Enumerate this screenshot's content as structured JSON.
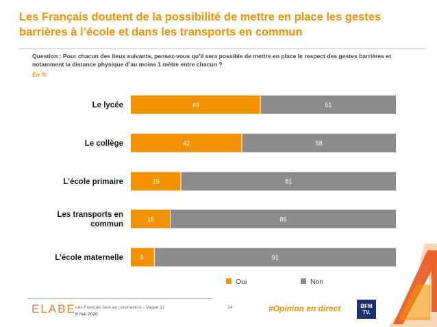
{
  "title": "Les Français doutent de la possibilité de mettre en place les gestes barrières à l’école et dans les transports en commun",
  "question": "Question : Pour chacun des lieux suivants, pensez-vous qu’il sera possible de mettre en place le respect des gestes barrières et notamment la distance physique d’au moins 1 mètre entre chacun ?",
  "unit": "En %",
  "colors": {
    "oui": "#f39200",
    "non": "#8c8c8c",
    "accent": "#f39200"
  },
  "legend": {
    "oui": "Oui",
    "non": "Non"
  },
  "chart_data": {
    "type": "bar",
    "orientation": "horizontal",
    "stacked": true,
    "categories": [
      "Le lycée",
      "Le collège",
      "L’école primaire",
      "Les transports en commun",
      "L’école maternelle"
    ],
    "series": [
      {
        "name": "Oui",
        "values": [
          49,
          42,
          19,
          15,
          9
        ]
      },
      {
        "name": "Non",
        "values": [
          51,
          58,
          81,
          85,
          91
        ]
      }
    ],
    "xlim": [
      0,
      100
    ],
    "legend_position": "bottom",
    "grid": false
  },
  "footer": {
    "logo": "ELABE",
    "source": "Les Français face au coronavirus - Vague 12",
    "date": "6 mai 2020",
    "page": "14",
    "hashtag": "#Opinion en direct",
    "partner": "BFM TV"
  }
}
